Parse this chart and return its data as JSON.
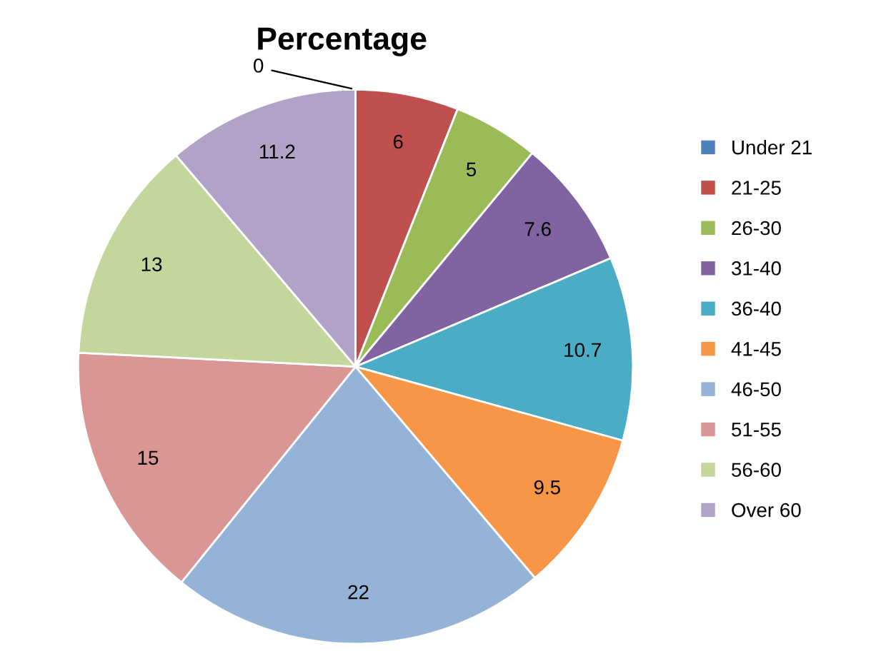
{
  "chart_data": {
    "type": "pie",
    "title": "Percentage",
    "categories": [
      "Under 21",
      "21-25",
      "26-30",
      "31-40",
      "36-40",
      "41-45",
      "46-50",
      "51-55",
      "56-60",
      "Over 60"
    ],
    "values": [
      0,
      6,
      5,
      7.6,
      10.7,
      9.5,
      22,
      15,
      13,
      11.2
    ],
    "colors": [
      "#4f81bd",
      "#c0504d",
      "#9bbb59",
      "#8064a2",
      "#4bacc6",
      "#f79646",
      "#95b3d7",
      "#d99694",
      "#c3d69b",
      "#b3a2c7"
    ],
    "value_labels": [
      "0",
      "6",
      "5",
      "7.6",
      "10.7",
      "9.5",
      "22",
      "15",
      "13",
      "11.2"
    ],
    "legend": "right"
  }
}
